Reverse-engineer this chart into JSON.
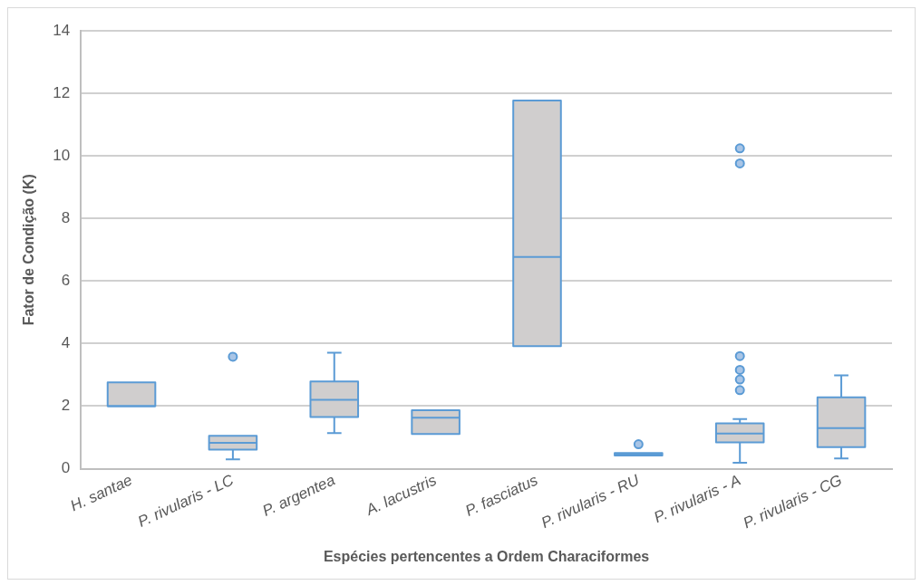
{
  "chart_data": {
    "type": "box",
    "xlabel": "Espécies pertencentes a Ordem Characiformes",
    "ylabel": "Fator de Condição (K)",
    "categories": [
      "H. santae",
      "P. rivularis - LC",
      "P. argentea",
      "A. lacustris",
      "P. fasciatus",
      "P. rivularis - RU",
      "P. rivularis - A",
      "P. rivularis - CG"
    ],
    "series": [
      {
        "color": "#5b9bd5",
        "boxes": [
          {
            "low": 2,
            "q1": 2,
            "median": 2,
            "q3": 2.76,
            "high": 2.76
          },
          {
            "low": 0.3,
            "q1": 0.61,
            "median": 0.83,
            "q3": 1.05,
            "high": 1.05,
            "outliers": [
              3.58
            ]
          },
          {
            "low": 1.14,
            "q1": 1.65,
            "median": 2.2,
            "q3": 2.79,
            "high": 3.71
          },
          {
            "low": 1.11,
            "q1": 1.11,
            "median": 1.63,
            "q3": 1.87,
            "high": 1.87
          },
          {
            "low": 3.92,
            "q1": 3.92,
            "median": 6.77,
            "q3": 11.77,
            "high": 11.77
          },
          {
            "low": 0.42,
            "q1": 0.42,
            "median": 0.45,
            "q3": 0.5,
            "high": 0.5,
            "outliers": [
              0.78
            ]
          },
          {
            "low": 0.19,
            "q1": 0.84,
            "median": 1.12,
            "q3": 1.45,
            "high": 1.59,
            "outliers": [
              10.24,
              9.76,
              3.6,
              3.16,
              2.85,
              2.51
            ]
          },
          {
            "low": 0.33,
            "q1": 0.69,
            "median": 1.3,
            "q3": 2.28,
            "high": 2.98
          }
        ]
      }
    ],
    "ylim": [
      0,
      14
    ],
    "yticks": [
      0,
      2,
      4,
      6,
      8,
      10,
      12,
      14
    ],
    "grid": "y",
    "legend": false
  }
}
